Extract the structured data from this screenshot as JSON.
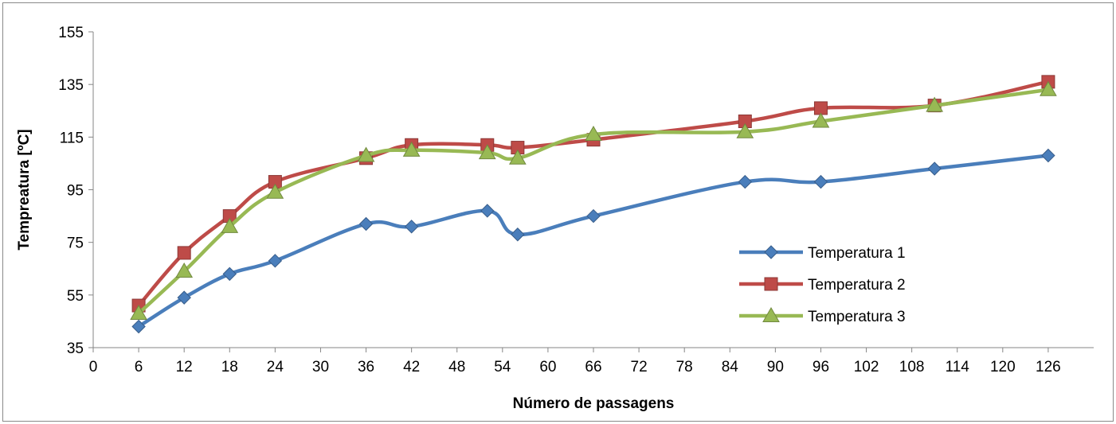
{
  "chart_data": {
    "type": "line",
    "title": "",
    "xlabel": "Número de passagens",
    "ylabel": "Tempreatura [ºC]",
    "xlim": [
      0,
      132
    ],
    "ylim": [
      35,
      155
    ],
    "x_ticks": [
      "0",
      "6",
      "12",
      "18",
      "24",
      "30",
      "36",
      "42",
      "48",
      "54",
      "60",
      "66",
      "72",
      "78",
      "84",
      "90",
      "96",
      "102",
      "108",
      "114",
      "120",
      "126"
    ],
    "y_ticks": [
      "35",
      "55",
      "75",
      "95",
      "115",
      "135",
      "155"
    ],
    "grid": false,
    "legend_position": "right",
    "series": [
      {
        "name": "Temperatura 1",
        "color": "#4a7ebb",
        "marker": "diamond",
        "points": [
          [
            6,
            43
          ],
          [
            12,
            54
          ],
          [
            18,
            63
          ],
          [
            24,
            68
          ],
          [
            36,
            82
          ],
          [
            42,
            81
          ],
          [
            52,
            87
          ],
          [
            56,
            78
          ],
          [
            66,
            85
          ],
          [
            86,
            98
          ],
          [
            96,
            98
          ],
          [
            111,
            103
          ],
          [
            126,
            108
          ]
        ]
      },
      {
        "name": "Temperatura 2",
        "color": "#be4b48",
        "marker": "square",
        "points": [
          [
            6,
            51
          ],
          [
            12,
            71
          ],
          [
            18,
            85
          ],
          [
            24,
            98
          ],
          [
            36,
            107
          ],
          [
            42,
            112
          ],
          [
            52,
            112
          ],
          [
            56,
            111
          ],
          [
            66,
            114
          ],
          [
            86,
            121
          ],
          [
            96,
            126
          ],
          [
            111,
            127
          ],
          [
            126,
            136
          ]
        ]
      },
      {
        "name": "Temperatura 3",
        "color": "#98b954",
        "marker": "triangle",
        "points": [
          [
            6,
            48
          ],
          [
            12,
            64
          ],
          [
            18,
            81
          ],
          [
            24,
            94
          ],
          [
            36,
            108
          ],
          [
            42,
            110
          ],
          [
            52,
            109
          ],
          [
            56,
            107
          ],
          [
            66,
            116
          ],
          [
            86,
            117
          ],
          [
            96,
            121
          ],
          [
            111,
            127
          ],
          [
            126,
            133
          ]
        ]
      }
    ]
  }
}
